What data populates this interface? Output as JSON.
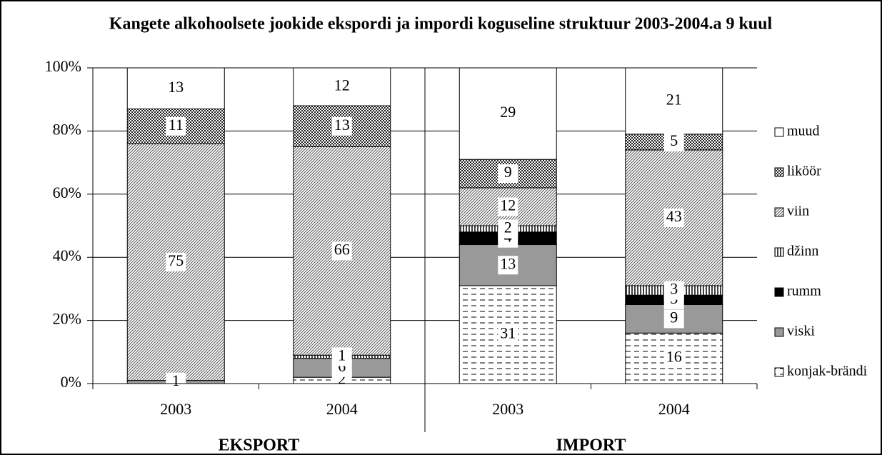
{
  "chart_data": {
    "type": "stacked_bar",
    "title": "Kangete alkohoolsete jookide ekspordi ja impordi koguseline struktuur 2003-2004.a 9 kuul",
    "categories": [
      "2003",
      "2004",
      "2003",
      "2004"
    ],
    "groups": [
      {
        "label": "EKSPORT",
        "categories": [
          0,
          1
        ]
      },
      {
        "label": "IMPORT",
        "categories": [
          2,
          3
        ]
      }
    ],
    "series": [
      {
        "name": "konjak-brändi",
        "color": "#ffffff",
        "pattern": "dash",
        "values": [
          null,
          2,
          31,
          16
        ]
      },
      {
        "name": "viski",
        "color": "#999999",
        "pattern": "solid",
        "values": [
          1,
          6,
          13,
          9
        ]
      },
      {
        "name": "rumm",
        "color": "#000000",
        "pattern": "solid",
        "values": [
          null,
          null,
          4,
          3
        ]
      },
      {
        "name": "džinn",
        "color": "#ffffff",
        "pattern": "vstripe",
        "values": [
          null,
          1,
          2,
          3
        ]
      },
      {
        "name": "viin",
        "color": "#ffffff",
        "pattern": "diag",
        "values": [
          75,
          66,
          12,
          43
        ]
      },
      {
        "name": "liköör",
        "color": "#ffffff",
        "pattern": "check",
        "values": [
          11,
          13,
          9,
          5
        ]
      },
      {
        "name": "muud",
        "color": "#ffffff",
        "pattern": "solid",
        "values": [
          13,
          12,
          29,
          21
        ]
      }
    ],
    "ylim": [
      0,
      100
    ],
    "yticks": [
      {
        "value": 0,
        "label": "0%"
      },
      {
        "value": 20,
        "label": "20%"
      },
      {
        "value": 40,
        "label": "40%"
      },
      {
        "value": 60,
        "label": "60%"
      },
      {
        "value": 80,
        "label": "80%"
      },
      {
        "value": 100,
        "label": "100%"
      }
    ],
    "grid": true,
    "legend": "right"
  }
}
